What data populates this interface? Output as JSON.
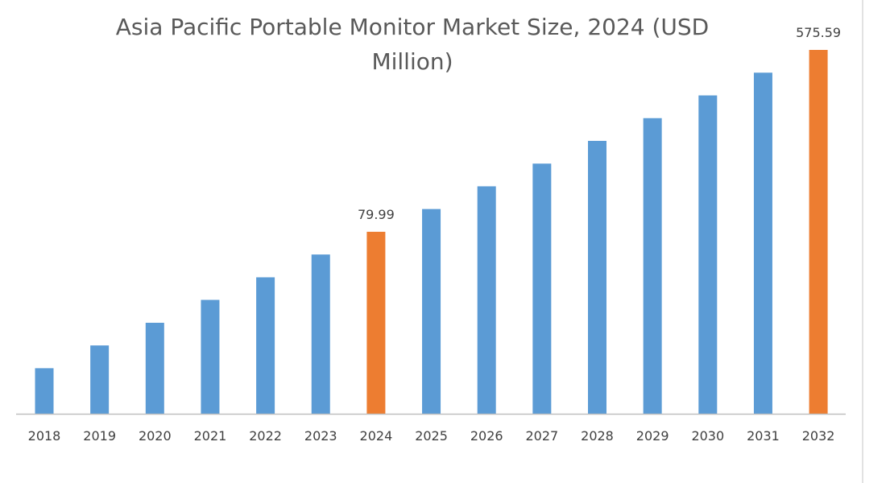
{
  "chart_data": {
    "type": "bar",
    "title_lines": [
      "Asia Pacific Portable Monitor Market Size, 2024 (USD",
      "Million)"
    ],
    "xlabel": "",
    "ylabel": "",
    "categories": [
      "2018",
      "2019",
      "2020",
      "2021",
      "2022",
      "2023",
      "2024",
      "2025",
      "2026",
      "2027",
      "2028",
      "2029",
      "2030",
      "2031",
      "2032"
    ],
    "values": [
      18.2,
      23.3,
      29.8,
      38.2,
      48.8,
      62.5,
      79.99,
      102.4,
      131.0,
      167.6,
      214.5,
      274.5,
      351.3,
      449.6,
      575.59
    ],
    "data_labels": {
      "2024": "79.99",
      "2032": "575.59"
    },
    "highlight": [
      "2024",
      "2032"
    ],
    "yscale": "log",
    "ylim": [
      11.1,
      575.59
    ],
    "y_axis_visible": false,
    "grid": false,
    "legend": "none",
    "colors": {
      "default": "#5B9BD5",
      "highlight": "#ED7D31",
      "axis": "#BFBFBF"
    }
  }
}
